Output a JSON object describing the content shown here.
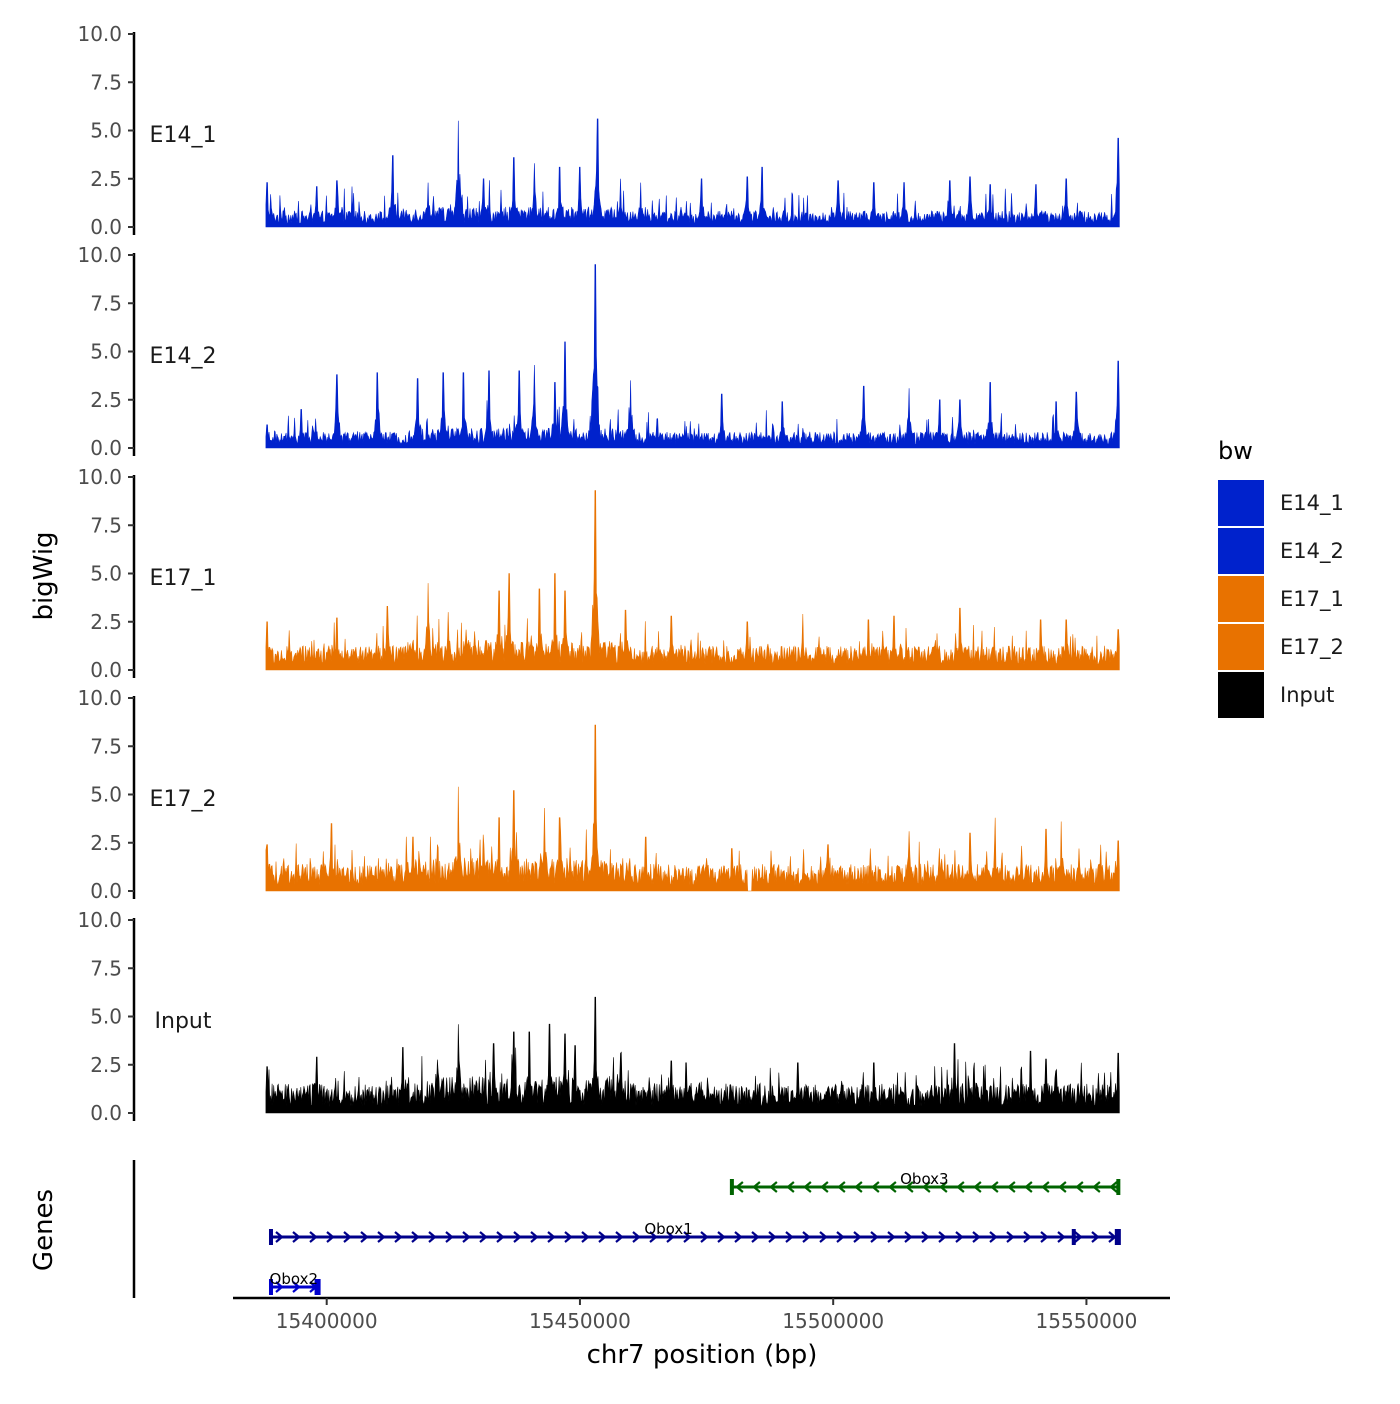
{
  "chart_data": {
    "type": "area",
    "title": "",
    "ylabel": "bigWig",
    "xlabel": "chr7 position (bp)",
    "genes_label": "Genes",
    "xlim": [
      15381500,
      15566500
    ],
    "data_range": [
      15388000,
      15556500
    ],
    "x_ticks": [
      15400000,
      15450000,
      15500000,
      15550000
    ],
    "x_tick_labels": [
      "15400000",
      "15450000",
      "15500000",
      "15550000"
    ],
    "ylim": [
      0,
      10
    ],
    "y_ticks": [
      0,
      2.5,
      5,
      7.5,
      10
    ],
    "y_tick_labels": [
      "0.0",
      "2.5",
      "5.0",
      "7.5",
      "10.0"
    ],
    "series": [
      {
        "name": "E14_1",
        "color": "#0022CC",
        "baseline": 0.6,
        "noise": 0.9,
        "peaks": [
          [
            15388200,
            2.3
          ],
          [
            15398000,
            2.1
          ],
          [
            15402000,
            2.4
          ],
          [
            15405000,
            2.1
          ],
          [
            15413000,
            3.7
          ],
          [
            15420000,
            2.3
          ],
          [
            15426000,
            5.5
          ],
          [
            15431000,
            2.5
          ],
          [
            15437000,
            3.6
          ],
          [
            15441000,
            3.3
          ],
          [
            15446000,
            3.1
          ],
          [
            15450000,
            3.1
          ],
          [
            15453500,
            5.6
          ],
          [
            15458000,
            2.5
          ],
          [
            15462000,
            2.3
          ],
          [
            15474000,
            2.5
          ],
          [
            15483000,
            2.6
          ],
          [
            15486000,
            3.1
          ],
          [
            15501000,
            2.4
          ],
          [
            15508000,
            2.3
          ],
          [
            15514000,
            2.3
          ],
          [
            15523000,
            2.4
          ],
          [
            15527000,
            2.6
          ],
          [
            15531000,
            2.2
          ],
          [
            15540000,
            2.2
          ],
          [
            15546000,
            2.5
          ],
          [
            15556300,
            4.6
          ]
        ],
        "gaps": []
      },
      {
        "name": "E14_2",
        "color": "#0022CC",
        "baseline": 0.6,
        "noise": 0.9,
        "peaks": [
          [
            15388200,
            1.2
          ],
          [
            15395000,
            2.0
          ],
          [
            15402000,
            3.8
          ],
          [
            15410000,
            3.9
          ],
          [
            15418000,
            3.6
          ],
          [
            15423000,
            3.9
          ],
          [
            15427000,
            3.9
          ],
          [
            15432000,
            4.0
          ],
          [
            15438000,
            4.0
          ],
          [
            15441000,
            4.3
          ],
          [
            15445000,
            3.4
          ],
          [
            15447000,
            5.5
          ],
          [
            15453000,
            9.5
          ],
          [
            15460000,
            3.5
          ],
          [
            15478000,
            2.8
          ],
          [
            15490000,
            2.4
          ],
          [
            15506000,
            3.2
          ],
          [
            15515000,
            3.1
          ],
          [
            15521000,
            2.5
          ],
          [
            15525000,
            2.5
          ],
          [
            15531000,
            3.4
          ],
          [
            15544000,
            2.4
          ],
          [
            15548000,
            2.9
          ],
          [
            15556300,
            4.5
          ]
        ],
        "gaps": []
      },
      {
        "name": "E17_1",
        "color": "#E87200",
        "baseline": 0.9,
        "noise": 1.0,
        "peaks": [
          [
            15388200,
            2.5
          ],
          [
            15402000,
            2.7
          ],
          [
            15412000,
            3.3
          ],
          [
            15420000,
            4.5
          ],
          [
            15424000,
            3.0
          ],
          [
            15434000,
            4.1
          ],
          [
            15436000,
            5.0
          ],
          [
            15442000,
            4.2
          ],
          [
            15445000,
            5.0
          ],
          [
            15447000,
            4.1
          ],
          [
            15453000,
            9.3
          ],
          [
            15459000,
            3.1
          ],
          [
            15468000,
            2.8
          ],
          [
            15483000,
            2.5
          ],
          [
            15494000,
            2.9
          ],
          [
            15507000,
            2.6
          ],
          [
            15512000,
            2.8
          ],
          [
            15525000,
            3.2
          ],
          [
            15541000,
            2.6
          ],
          [
            15546000,
            2.6
          ],
          [
            15556300,
            2.1
          ]
        ],
        "gaps": []
      },
      {
        "name": "E17_2",
        "color": "#E87200",
        "baseline": 1.0,
        "noise": 1.0,
        "peaks": [
          [
            15388200,
            2.4
          ],
          [
            15401000,
            3.5
          ],
          [
            15417000,
            2.8
          ],
          [
            15426000,
            5.4
          ],
          [
            15434000,
            3.8
          ],
          [
            15437000,
            5.2
          ],
          [
            15443000,
            4.3
          ],
          [
            15446000,
            3.8
          ],
          [
            15453000,
            8.6
          ],
          [
            15463000,
            2.8
          ],
          [
            15475000,
            1.7
          ],
          [
            15480000,
            2.2
          ],
          [
            15499000,
            2.4
          ],
          [
            15515000,
            3.1
          ],
          [
            15527000,
            3.0
          ],
          [
            15532000,
            3.8
          ],
          [
            15542000,
            3.2
          ],
          [
            15545000,
            3.6
          ],
          [
            15556300,
            2.6
          ]
        ],
        "gaps": [
          [
            15483000,
            15484000
          ]
        ]
      },
      {
        "name": "Input",
        "color": "#000000",
        "baseline": 1.1,
        "noise": 1.0,
        "peaks": [
          [
            15388200,
            2.4
          ],
          [
            15398000,
            2.9
          ],
          [
            15415000,
            3.4
          ],
          [
            15426000,
            4.6
          ],
          [
            15433000,
            3.6
          ],
          [
            15437000,
            4.2
          ],
          [
            15440000,
            4.2
          ],
          [
            15444000,
            4.6
          ],
          [
            15447000,
            4.1
          ],
          [
            15449000,
            3.5
          ],
          [
            15453000,
            6.0
          ],
          [
            15458000,
            3.1
          ],
          [
            15468000,
            2.7
          ],
          [
            15471000,
            2.6
          ],
          [
            15493000,
            2.6
          ],
          [
            15508000,
            2.6
          ],
          [
            15524000,
            3.6
          ],
          [
            15530000,
            2.5
          ],
          [
            15539000,
            3.2
          ],
          [
            15542000,
            2.8
          ],
          [
            15549000,
            2.6
          ],
          [
            15556300,
            3.1
          ]
        ],
        "gaps": []
      }
    ],
    "legend": {
      "title": "bw",
      "position": "right",
      "entries": [
        {
          "label": "E14_1",
          "color": "#0022CC"
        },
        {
          "label": "E14_2",
          "color": "#0022CC"
        },
        {
          "label": "E17_1",
          "color": "#E87200"
        },
        {
          "label": "E17_2",
          "color": "#E87200"
        },
        {
          "label": "Input",
          "color": "#000000"
        }
      ]
    },
    "genes": [
      {
        "name": "Obox3",
        "strand": "-",
        "start": 15480000,
        "end": 15556500,
        "color": "#006400",
        "row": 0,
        "label_pos": 15518000,
        "exons": [
          15480000,
          15556300
        ]
      },
      {
        "name": "Obox1",
        "strand": "+",
        "start": 15389000,
        "end": 15556500,
        "color": "#00008B",
        "row": 1,
        "label_pos": 15467500,
        "exons": [
          15389000,
          15547500,
          15556000,
          15556400
        ]
      },
      {
        "name": "Obox2",
        "strand": "+",
        "start": 15389000,
        "end": 15398500,
        "color": "#0000CD",
        "row": 2,
        "label_pos": 15393500,
        "exons": [
          15389000,
          15398000,
          15398400
        ]
      }
    ]
  }
}
